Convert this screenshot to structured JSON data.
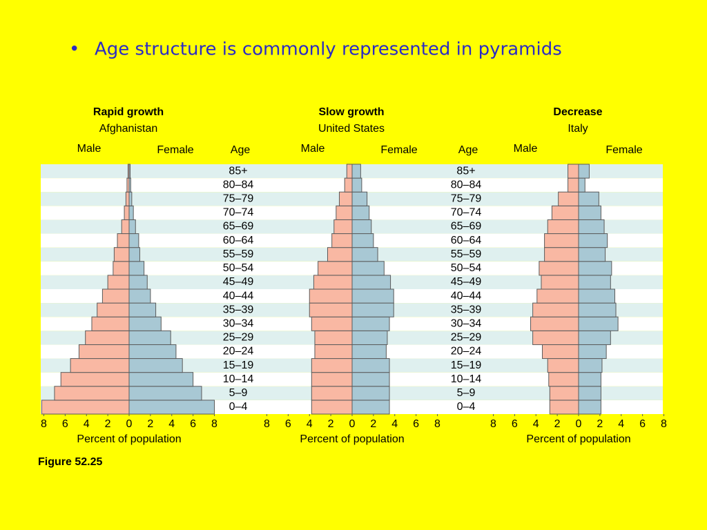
{
  "slide": {
    "bullet": "Age structure is commonly represented in pyramids",
    "caption": "Figure 52.25"
  },
  "chart_data": [
    {
      "type": "pyramid",
      "title": "Rapid growth",
      "subtitle": "Afghanistan",
      "age_label": "Age",
      "x_label": "Percent of population",
      "categories": [
        "0–4",
        "5–9",
        "10–14",
        "15–19",
        "20–24",
        "25–29",
        "30–34",
        "35–39",
        "40–44",
        "45–49",
        "50–54",
        "55–59",
        "60–64",
        "65–69",
        "70–74",
        "75–79",
        "80–84",
        "85+"
      ],
      "series": [
        {
          "name": "Male",
          "color": "#f9b8a3",
          "values": [
            8.2,
            7.0,
            6.4,
            5.5,
            4.7,
            4.1,
            3.5,
            3.0,
            2.5,
            2.0,
            1.5,
            1.4,
            1.1,
            0.7,
            0.45,
            0.3,
            0.2,
            0.1
          ]
        },
        {
          "name": "Female",
          "color": "#a8c8d4",
          "values": [
            8.0,
            6.8,
            6.0,
            5.0,
            4.4,
            3.9,
            3.0,
            2.5,
            2.0,
            1.7,
            1.4,
            1.0,
            0.9,
            0.6,
            0.4,
            0.25,
            0.15,
            0.1
          ]
        }
      ],
      "xlim": [
        -8,
        8
      ],
      "xticks": [
        {
          "value": -8,
          "label": "8"
        },
        {
          "value": -6,
          "label": "6"
        },
        {
          "value": -4,
          "label": "4"
        },
        {
          "value": -2,
          "label": "2"
        },
        0,
        2,
        4,
        6,
        8
      ]
    },
    {
      "type": "pyramid",
      "title": "Slow growth",
      "subtitle": "United States",
      "age_label": "Age",
      "x_label": "Percent of population",
      "categories": [
        "0–4",
        "5–9",
        "10–14",
        "15–19",
        "20–24",
        "25–29",
        "30–34",
        "35–39",
        "40–44",
        "45–49",
        "50–54",
        "55–59",
        "60–64",
        "65–69",
        "70–74",
        "75–79",
        "80–84",
        "85+"
      ],
      "series": [
        {
          "name": "Male",
          "color": "#f9b8a3",
          "values": [
            3.8,
            3.8,
            3.8,
            3.8,
            3.5,
            3.5,
            3.8,
            4.0,
            4.0,
            3.6,
            3.2,
            2.3,
            1.9,
            1.7,
            1.5,
            1.2,
            0.7,
            0.5
          ]
        },
        {
          "name": "Female",
          "color": "#a8c8d4",
          "values": [
            3.5,
            3.5,
            3.5,
            3.5,
            3.2,
            3.3,
            3.5,
            3.9,
            3.9,
            3.6,
            3.0,
            2.4,
            2.0,
            1.8,
            1.6,
            1.4,
            0.9,
            0.8
          ]
        }
      ],
      "xlim": [
        -8,
        8
      ],
      "xticks": [
        {
          "value": -8,
          "label": "8"
        },
        {
          "value": -6,
          "label": "6"
        },
        {
          "value": -4,
          "label": "4"
        },
        {
          "value": -2,
          "label": "2"
        },
        0,
        2,
        4,
        6,
        8
      ]
    },
    {
      "type": "pyramid",
      "title": "Decrease",
      "subtitle": "Italy",
      "x_label": "Percent of population",
      "categories": [
        "0–4",
        "5–9",
        "10–14",
        "15–19",
        "20–24",
        "25–29",
        "30–34",
        "35–39",
        "40–44",
        "45–49",
        "50–54",
        "55–59",
        "60–64",
        "65–69",
        "70–74",
        "75–79",
        "80–84",
        "85+"
      ],
      "series": [
        {
          "name": "Male",
          "color": "#f9b8a3",
          "values": [
            2.7,
            2.7,
            2.8,
            2.9,
            3.4,
            4.3,
            4.5,
            4.3,
            3.9,
            3.5,
            3.7,
            3.2,
            3.2,
            2.9,
            2.5,
            1.9,
            1.0,
            1.0
          ]
        },
        {
          "name": "Female",
          "color": "#a8c8d4",
          "values": [
            2.1,
            2.1,
            2.1,
            2.2,
            2.6,
            3.0,
            3.7,
            3.5,
            3.4,
            3.0,
            3.1,
            2.5,
            2.7,
            2.4,
            2.1,
            1.9,
            0.6,
            1.0
          ]
        }
      ],
      "xlim": [
        -8,
        8
      ],
      "xticks": [
        {
          "value": -8,
          "label": "8"
        },
        {
          "value": -6,
          "label": "6"
        },
        {
          "value": -4,
          "label": "4"
        },
        {
          "value": -2,
          "label": "2"
        },
        0,
        2,
        4,
        6,
        8
      ]
    }
  ]
}
